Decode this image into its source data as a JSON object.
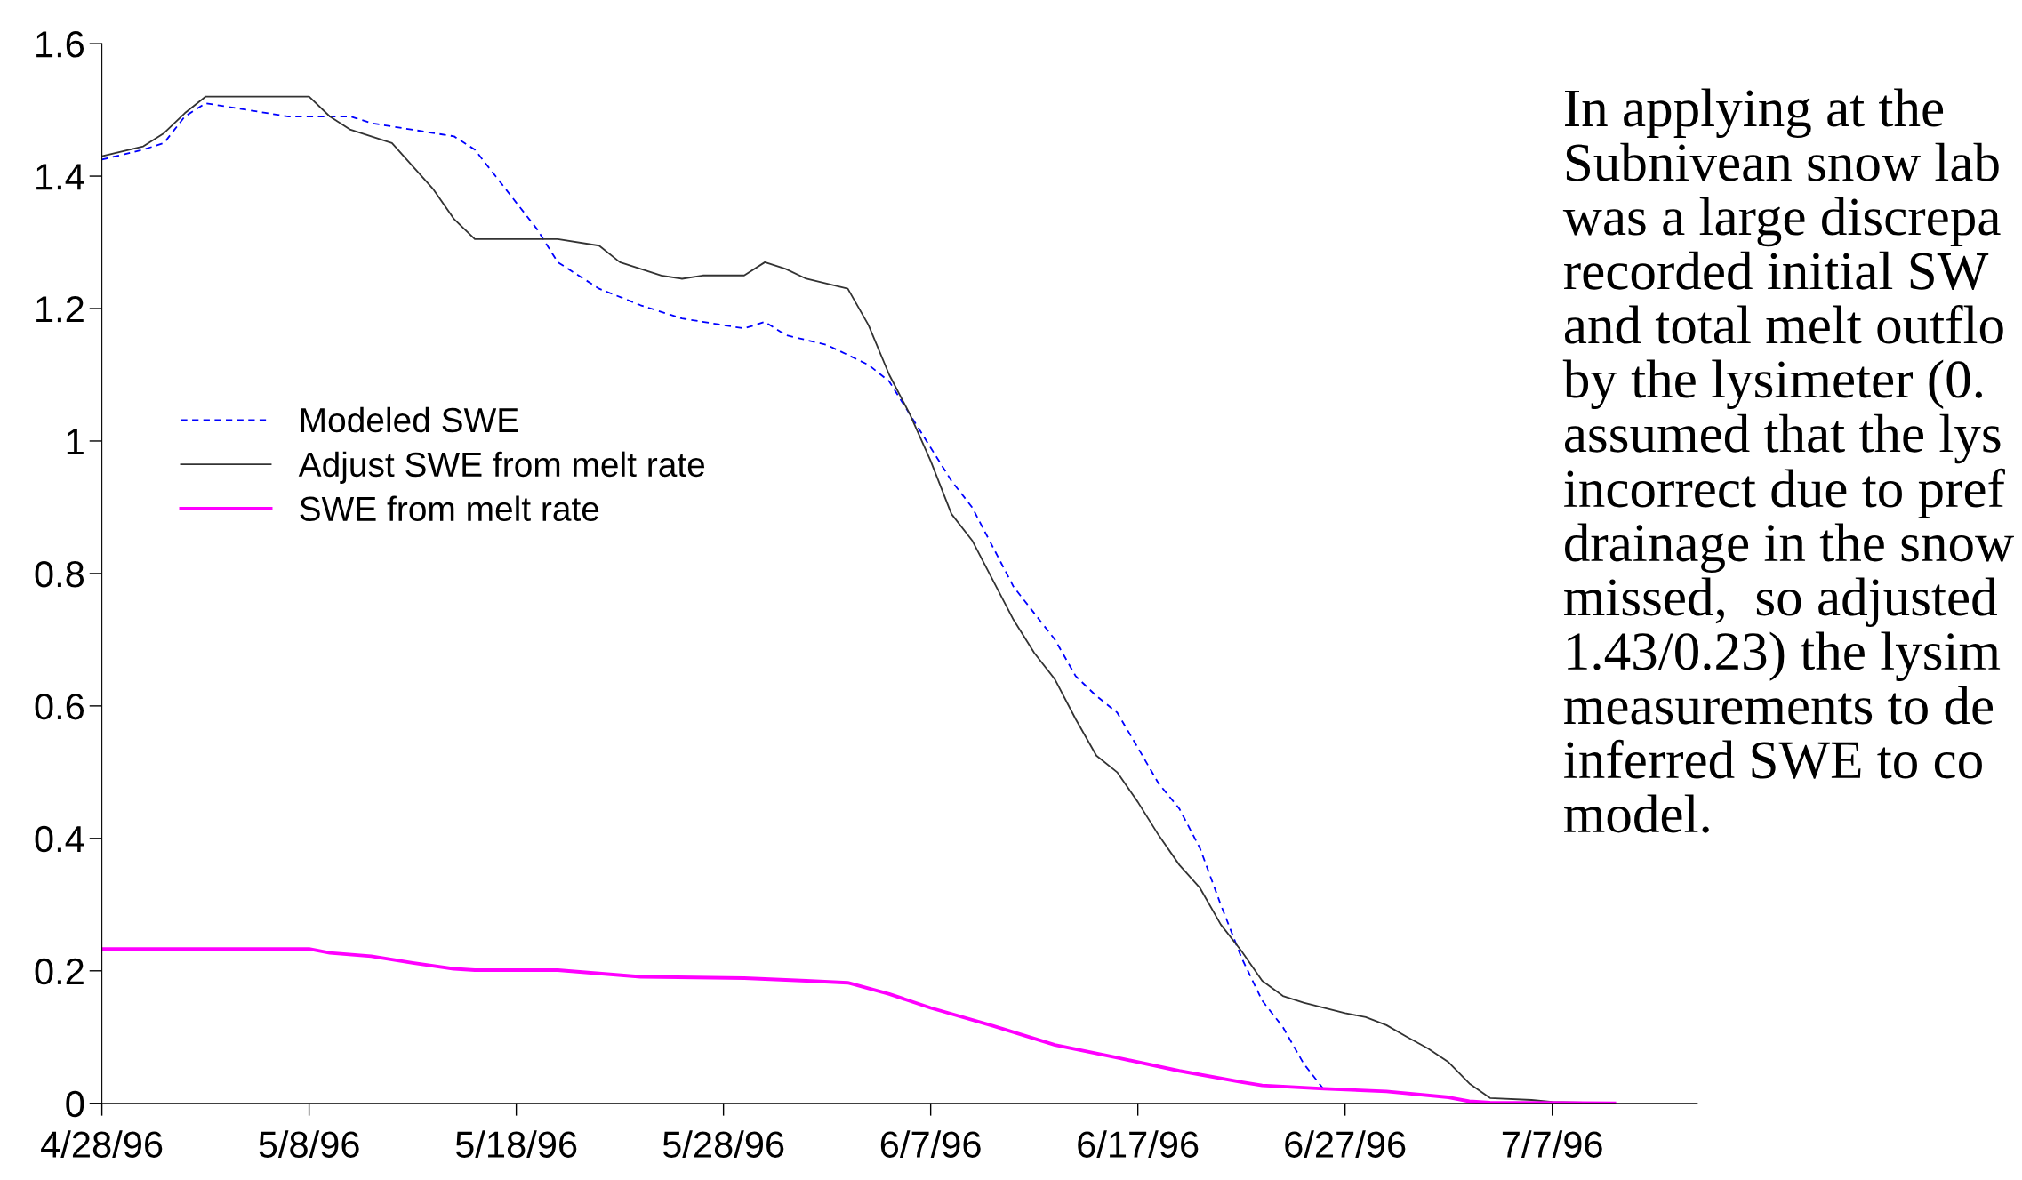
{
  "chart_data": {
    "type": "line",
    "annotations": [
      "In applying at the\nSubnivean snow lab\nwas a large discrepa\nrecorded initial SW\nand total melt outflo\nby the lysimeter (0.\nassumed that the lys\nincorrect due to pref\ndrainage in the snow\nmissed,  so adjusted\n1.43/0.23) the lysim\nmeasurements to de\ninferred SWE to co\nmodel."
    ],
    "series": [
      {
        "name": "Modeled SWE",
        "color": "#0000ff",
        "line_style": "dashed",
        "x": [
          "1996-04-28",
          "1996-04-30",
          "1996-05-01",
          "1996-05-02",
          "1996-05-03",
          "1996-05-05",
          "1996-05-07",
          "1996-05-09",
          "1996-05-10",
          "1996-05-11",
          "1996-05-13",
          "1996-05-15",
          "1996-05-16",
          "1996-05-17",
          "1996-05-18",
          "1996-05-19",
          "1996-05-20",
          "1996-05-22",
          "1996-05-24",
          "1996-05-26",
          "1996-05-29",
          "1996-05-30",
          "1996-05-31",
          "1996-06-02",
          "1996-06-04",
          "1996-06-05",
          "1996-06-06",
          "1996-06-07",
          "1996-06-08",
          "1996-06-09",
          "1996-06-10",
          "1996-06-11",
          "1996-06-12",
          "1996-06-13",
          "1996-06-14",
          "1996-06-15",
          "1996-06-16",
          "1996-06-17",
          "1996-06-18",
          "1996-06-19",
          "1996-06-20",
          "1996-06-21",
          "1996-06-22",
          "1996-06-23",
          "1996-06-24",
          "1996-06-25",
          "1996-06-26"
        ],
        "values": [
          1.425,
          1.44,
          1.45,
          1.49,
          1.51,
          1.5,
          1.49,
          1.49,
          1.49,
          1.48,
          1.47,
          1.46,
          1.44,
          1.4,
          1.36,
          1.32,
          1.27,
          1.23,
          1.205,
          1.185,
          1.17,
          1.18,
          1.16,
          1.145,
          1.115,
          1.09,
          1.04,
          0.99,
          0.94,
          0.9,
          0.84,
          0.78,
          0.74,
          0.7,
          0.645,
          0.615,
          0.59,
          0.537,
          0.483,
          0.445,
          0.385,
          0.3,
          0.22,
          0.155,
          0.115,
          0.06,
          0.02
        ]
      },
      {
        "name": "Adjust SWE from melt rate",
        "color": "#333333",
        "line_style": "solid",
        "x": [
          "1996-04-28",
          "1996-04-30",
          "1996-05-01",
          "1996-05-02",
          "1996-05-03",
          "1996-05-08",
          "1996-05-09",
          "1996-05-10",
          "1996-05-12",
          "1996-05-13",
          "1996-05-14",
          "1996-05-15",
          "1996-05-16",
          "1996-05-20",
          "1996-05-22",
          "1996-05-23",
          "1996-05-25",
          "1996-05-26",
          "1996-05-27",
          "1996-05-29",
          "1996-05-30",
          "1996-05-31",
          "1996-06-01",
          "1996-06-03",
          "1996-06-04",
          "1996-06-05",
          "1996-06-06",
          "1996-06-07",
          "1996-06-08",
          "1996-06-09",
          "1996-06-10",
          "1996-06-11",
          "1996-06-12",
          "1996-06-13",
          "1996-06-14",
          "1996-06-15",
          "1996-06-16",
          "1996-06-17",
          "1996-06-18",
          "1996-06-19",
          "1996-06-20",
          "1996-06-21",
          "1996-06-22",
          "1996-06-23",
          "1996-06-24",
          "1996-06-25",
          "1996-06-27",
          "1996-06-28",
          "1996-06-29",
          "1996-06-30",
          "1996-07-01",
          "1996-07-02",
          "1996-07-03",
          "1996-07-04",
          "1996-07-06",
          "1996-07-07",
          "1996-07-10"
        ],
        "values": [
          1.43,
          1.445,
          1.465,
          1.495,
          1.52,
          1.52,
          1.49,
          1.47,
          1.45,
          1.415,
          1.38,
          1.335,
          1.305,
          1.305,
          1.295,
          1.27,
          1.25,
          1.245,
          1.25,
          1.25,
          1.27,
          1.26,
          1.245,
          1.23,
          1.175,
          1.1,
          1.04,
          0.97,
          0.89,
          0.85,
          0.79,
          0.73,
          0.68,
          0.64,
          0.58,
          0.525,
          0.5,
          0.455,
          0.405,
          0.36,
          0.325,
          0.27,
          0.23,
          0.185,
          0.162,
          0.152,
          0.136,
          0.13,
          0.118,
          0.1,
          0.083,
          0.062,
          0.03,
          0.008,
          0.005,
          0.002,
          0
        ]
      },
      {
        "name": "SWE from melt rate",
        "color": "#ff00ff",
        "line_style": "solid",
        "x": [
          "1996-04-28",
          "1996-05-08",
          "1996-05-09",
          "1996-05-11",
          "1996-05-13",
          "1996-05-15",
          "1996-05-16",
          "1996-05-20",
          "1996-05-24",
          "1996-05-29",
          "1996-06-01",
          "1996-06-03",
          "1996-06-05",
          "1996-06-07",
          "1996-06-10",
          "1996-06-13",
          "1996-06-16",
          "1996-06-19",
          "1996-06-22",
          "1996-06-23",
          "1996-06-26",
          "1996-06-29",
          "1996-07-02",
          "1996-07-03",
          "1996-07-04",
          "1996-07-10"
        ],
        "values": [
          0.233,
          0.233,
          0.227,
          0.222,
          0.212,
          0.203,
          0.201,
          0.201,
          0.191,
          0.189,
          0.185,
          0.182,
          0.165,
          0.144,
          0.117,
          0.088,
          0.069,
          0.049,
          0.032,
          0.027,
          0.022,
          0.018,
          0.009,
          0.003,
          0.001,
          0
        ]
      }
    ],
    "xlim": [
      "1996-04-28",
      "1996-07-14"
    ],
    "xticks": [
      {
        "value": "1996-04-28",
        "label": "4/28/96"
      },
      {
        "value": "1996-05-08",
        "label": "5/8/96"
      },
      {
        "value": "1996-05-18",
        "label": "5/18/96"
      },
      {
        "value": "1996-05-28",
        "label": "5/28/96"
      },
      {
        "value": "1996-06-07",
        "label": "6/7/96"
      },
      {
        "value": "1996-06-17",
        "label": "6/17/96"
      },
      {
        "value": "1996-06-27",
        "label": "6/27/96"
      },
      {
        "value": "1996-07-07",
        "label": "7/7/96"
      }
    ],
    "ylim": [
      0,
      1.6
    ],
    "yticks": [
      0,
      0.2,
      0.4,
      0.6,
      0.8,
      1,
      1.2,
      1.4,
      1.6
    ],
    "grid": false,
    "legend": "left",
    "marker": "none"
  }
}
